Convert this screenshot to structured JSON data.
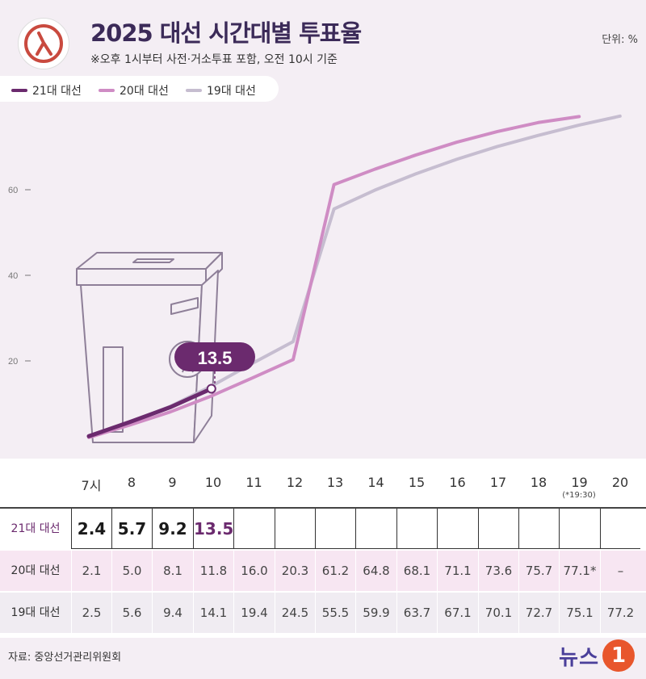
{
  "header": {
    "title": "2025 대선 시간대별 투표율",
    "subtitle": "※오후 1시부터 사전·거소투표 포함, 오전 10시 기준",
    "unit": "단위: %"
  },
  "legend": [
    {
      "label": "21대 대선",
      "color": "#6b2a6e"
    },
    {
      "label": "20대 대선",
      "color": "#cf8cc4"
    },
    {
      "label": "19대 대선",
      "color": "#c6bdd0"
    }
  ],
  "callout": {
    "value": "13.5"
  },
  "chart_data": {
    "type": "line",
    "x": [
      "7시",
      "8",
      "9",
      "10",
      "11",
      "12",
      "13",
      "14",
      "15",
      "16",
      "17",
      "18",
      "19",
      "20"
    ],
    "y_ticks": [
      "20",
      "40",
      "60",
      "80"
    ],
    "ylim": [
      0,
      80
    ],
    "series": [
      {
        "name": "21대 대선",
        "color": "#6b2a6e",
        "values": [
          2.4,
          5.7,
          9.2,
          13.5,
          null,
          null,
          null,
          null,
          null,
          null,
          null,
          null,
          null,
          null
        ]
      },
      {
        "name": "20대 대선",
        "color": "#cf8cc4",
        "values": [
          2.1,
          5.0,
          8.1,
          11.8,
          16.0,
          20.3,
          61.2,
          64.8,
          68.1,
          71.1,
          73.6,
          75.7,
          77.1,
          null
        ]
      },
      {
        "name": "19대 대선",
        "color": "#c6bdd0",
        "values": [
          2.5,
          5.6,
          9.4,
          14.1,
          19.4,
          24.5,
          55.5,
          59.9,
          63.7,
          67.1,
          70.1,
          72.7,
          75.1,
          77.2
        ]
      }
    ]
  },
  "table": {
    "hours": [
      "7시",
      "8",
      "9",
      "10",
      "11",
      "12",
      "13",
      "14",
      "15",
      "16",
      "17",
      "18",
      "19",
      "20"
    ],
    "note_19": "(*19:30)",
    "rows": [
      {
        "label": "21대 대선",
        "cells": [
          "2.4",
          "5.7",
          "9.2",
          "13.5",
          "",
          "",
          "",
          "",
          "",
          "",
          "",
          "",
          "",
          ""
        ]
      },
      {
        "label": "20대 대선",
        "cells": [
          "2.1",
          "5.0",
          "8.1",
          "11.8",
          "16.0",
          "20.3",
          "61.2",
          "64.8",
          "68.1",
          "71.1",
          "73.6",
          "75.7",
          "77.1*",
          "–"
        ]
      },
      {
        "label": "19대 대선",
        "cells": [
          "2.5",
          "5.6",
          "9.4",
          "14.1",
          "19.4",
          "24.5",
          "55.5",
          "59.9",
          "63.7",
          "67.1",
          "70.1",
          "72.7",
          "75.1",
          "77.2"
        ]
      }
    ]
  },
  "footer": {
    "source": "자료: 중앙선거관리위원회",
    "brand": "뉴스",
    "brand_badge": "1"
  }
}
